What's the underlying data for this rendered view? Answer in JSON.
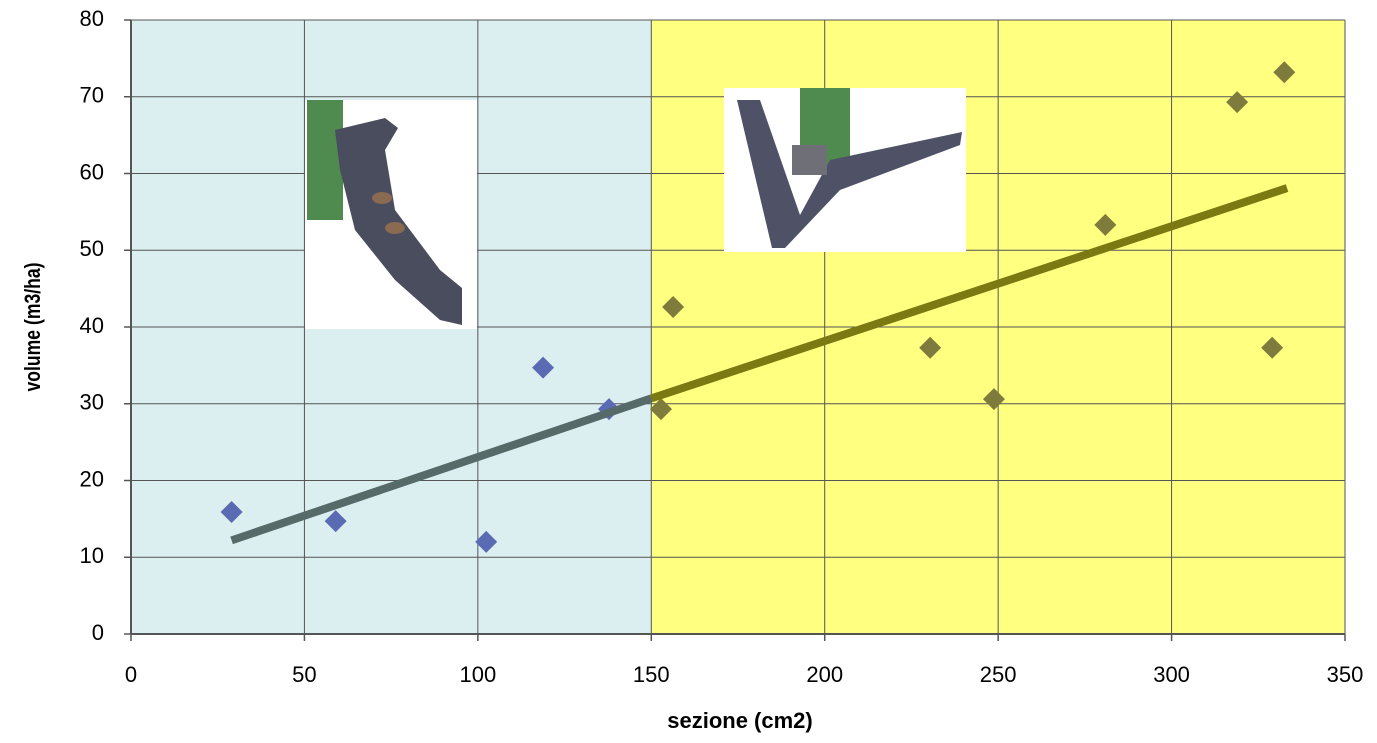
{
  "chart_data": {
    "type": "scatter",
    "xlabel": "sezione (cm2)",
    "ylabel": "volume (m3/ha)",
    "xlim": [
      0,
      350
    ],
    "xticks": [
      0,
      50,
      100,
      150,
      200,
      250,
      300,
      350
    ],
    "ylim": [
      0,
      80
    ],
    "yticks": [
      0,
      10,
      20,
      30,
      40,
      50,
      60,
      70,
      80
    ],
    "grid": true,
    "regions": [
      {
        "xlim": [
          0,
          150
        ],
        "color": "#dbeef0"
      },
      {
        "xlim": [
          150,
          350
        ],
        "color": "#ffff80"
      }
    ],
    "series": [
      {
        "mode": "markers",
        "color": "#5b6bb3",
        "x": [
          29,
          59,
          102.4,
          118.8,
          137.8
        ],
        "values": [
          15.9,
          14.7,
          12,
          34.7,
          29.3
        ]
      },
      {
        "mode": "markers",
        "color": "#7f7b3c",
        "x": [
          152.8,
          156.3,
          230.4,
          248.8,
          280.9,
          318.9,
          332.5,
          329
        ],
        "values": [
          29.3,
          42.6,
          37.3,
          30.6,
          53.3,
          69.3,
          73.2,
          37.3
        ]
      },
      {
        "mode": "line",
        "color": "#566a6a",
        "x": [
          29,
          150
        ],
        "values": [
          12.2,
          30.7
        ]
      },
      {
        "mode": "line",
        "color": "#7b7a12",
        "x": [
          150,
          333.3
        ],
        "values": [
          30.7,
          58.1
        ]
      }
    ]
  }
}
